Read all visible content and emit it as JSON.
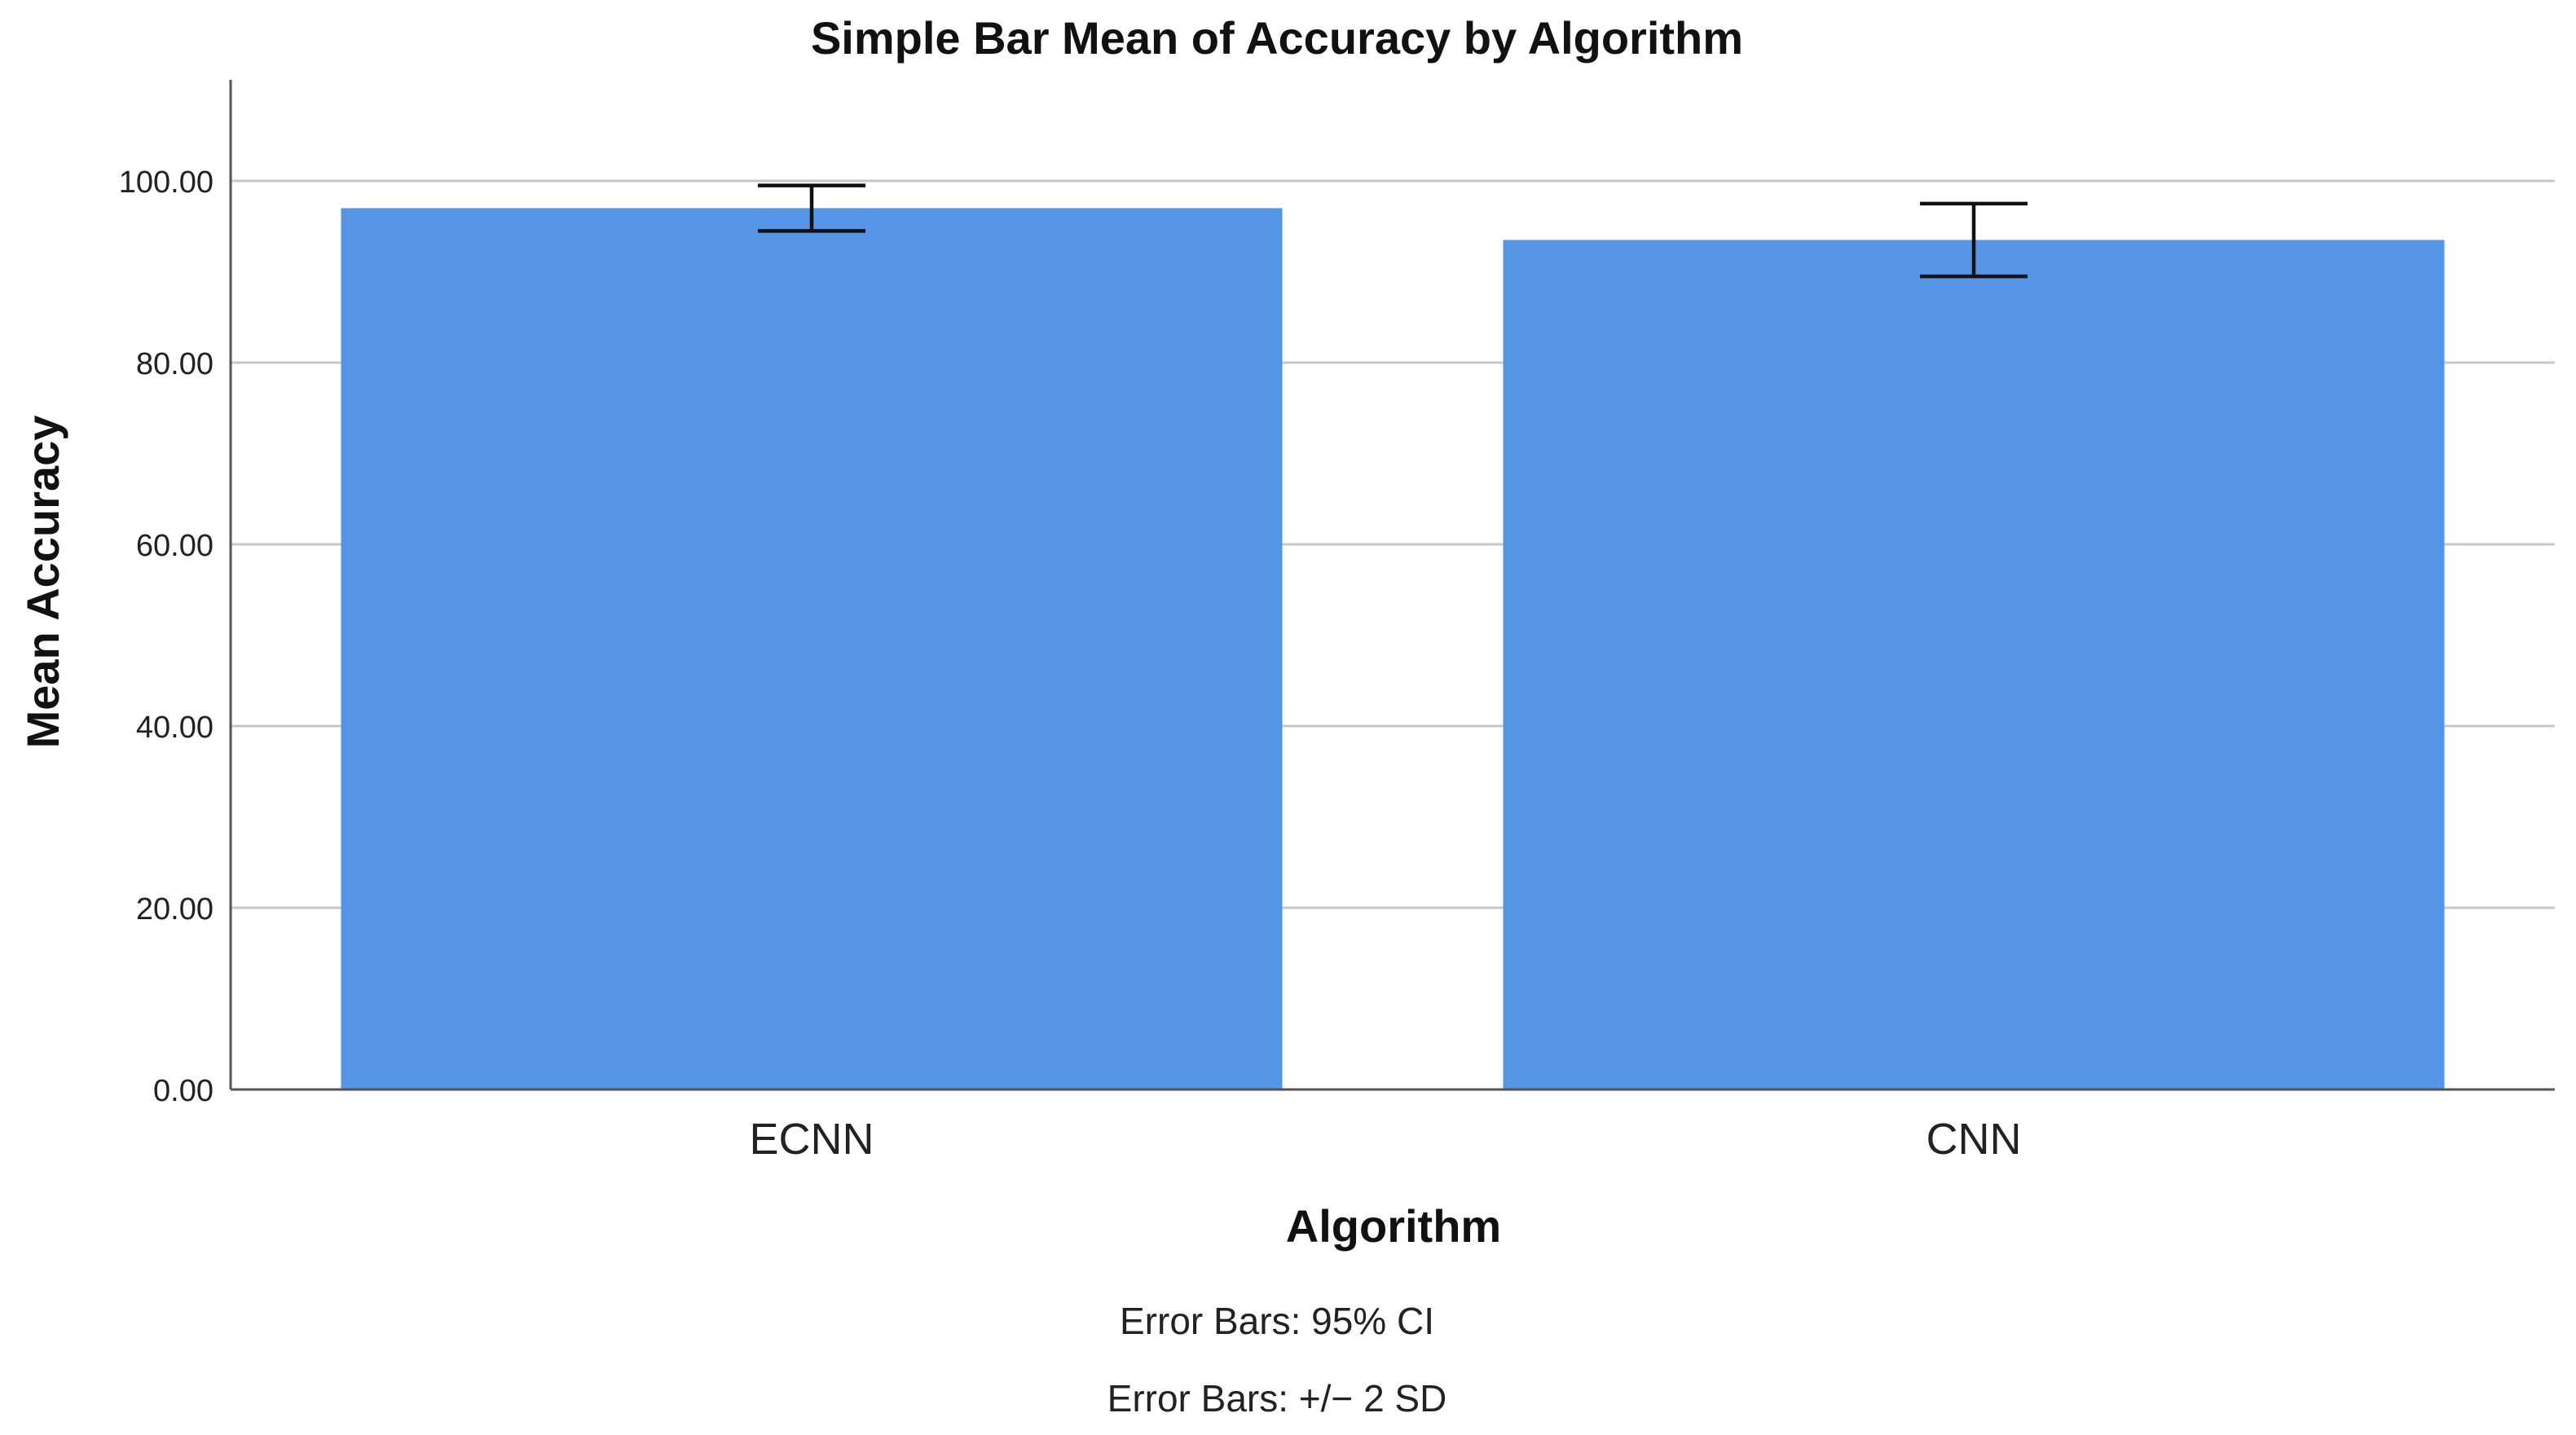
{
  "chart_data": {
    "type": "bar",
    "title": "Simple Bar Mean of Accuracy by Algorithm",
    "xlabel": "Algorithm",
    "ylabel": "Mean Accuracy",
    "categories": [
      "ECNN",
      "CNN"
    ],
    "values": [
      97.0,
      93.5
    ],
    "error_bars": [
      {
        "low": 94.5,
        "high": 99.5
      },
      {
        "low": 89.5,
        "high": 97.5
      }
    ],
    "ylim": [
      0,
      100
    ],
    "yticks": [
      0,
      20,
      40,
      60,
      80,
      100
    ],
    "ytick_labels": [
      "0.00",
      "20.00",
      "40.00",
      "60.00",
      "80.00",
      "100.00"
    ],
    "grid": true,
    "bar_color": "#5595E5",
    "notes": [
      "Error Bars: 95% CI",
      "Error Bars: +/− 2 SD"
    ]
  }
}
